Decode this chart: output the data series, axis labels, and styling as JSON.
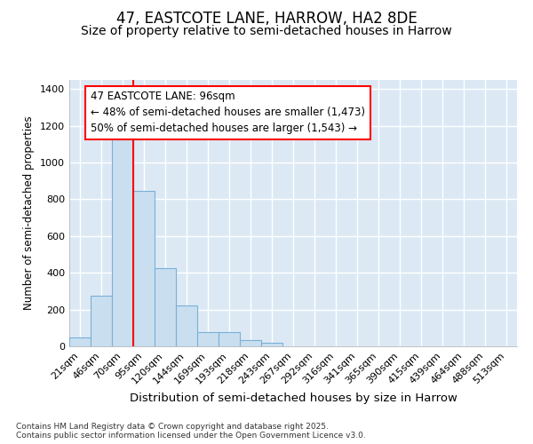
{
  "title": "47, EASTCOTE LANE, HARROW, HA2 8DE",
  "subtitle": "Size of property relative to semi-detached houses in Harrow",
  "xlabel": "Distribution of semi-detached houses by size in Harrow",
  "ylabel": "Number of semi-detached properties",
  "categories": [
    "21sqm",
    "46sqm",
    "70sqm",
    "95sqm",
    "120sqm",
    "144sqm",
    "169sqm",
    "193sqm",
    "218sqm",
    "243sqm",
    "267sqm",
    "292sqm",
    "316sqm",
    "341sqm",
    "365sqm",
    "390sqm",
    "415sqm",
    "439sqm",
    "464sqm",
    "488sqm",
    "513sqm"
  ],
  "values": [
    50,
    275,
    1165,
    845,
    425,
    220,
    75,
    75,
    35,
    20,
    0,
    0,
    0,
    0,
    0,
    0,
    0,
    0,
    0,
    0,
    0
  ],
  "bar_color": "#c9dff0",
  "bar_edge_color": "#7bafd4",
  "annotation_line1": "47 EASTCOTE LANE: 96sqm",
  "annotation_line2": "← 48% of semi-detached houses are smaller (1,473)",
  "annotation_line3": "50% of semi-detached houses are larger (1,543) →",
  "vline_position": 3.0,
  "fig_background": "#ffffff",
  "plot_background": "#dce9f5",
  "footer": "Contains HM Land Registry data © Crown copyright and database right 2025.\nContains public sector information licensed under the Open Government Licence v3.0.",
  "ylim": [
    0,
    1450
  ],
  "yticks": [
    0,
    200,
    400,
    600,
    800,
    1000,
    1200,
    1400
  ],
  "title_fontsize": 12,
  "subtitle_fontsize": 10,
  "xlabel_fontsize": 9.5,
  "ylabel_fontsize": 8.5,
  "tick_fontsize": 8,
  "footer_fontsize": 6.5,
  "annot_fontsize": 8.5
}
